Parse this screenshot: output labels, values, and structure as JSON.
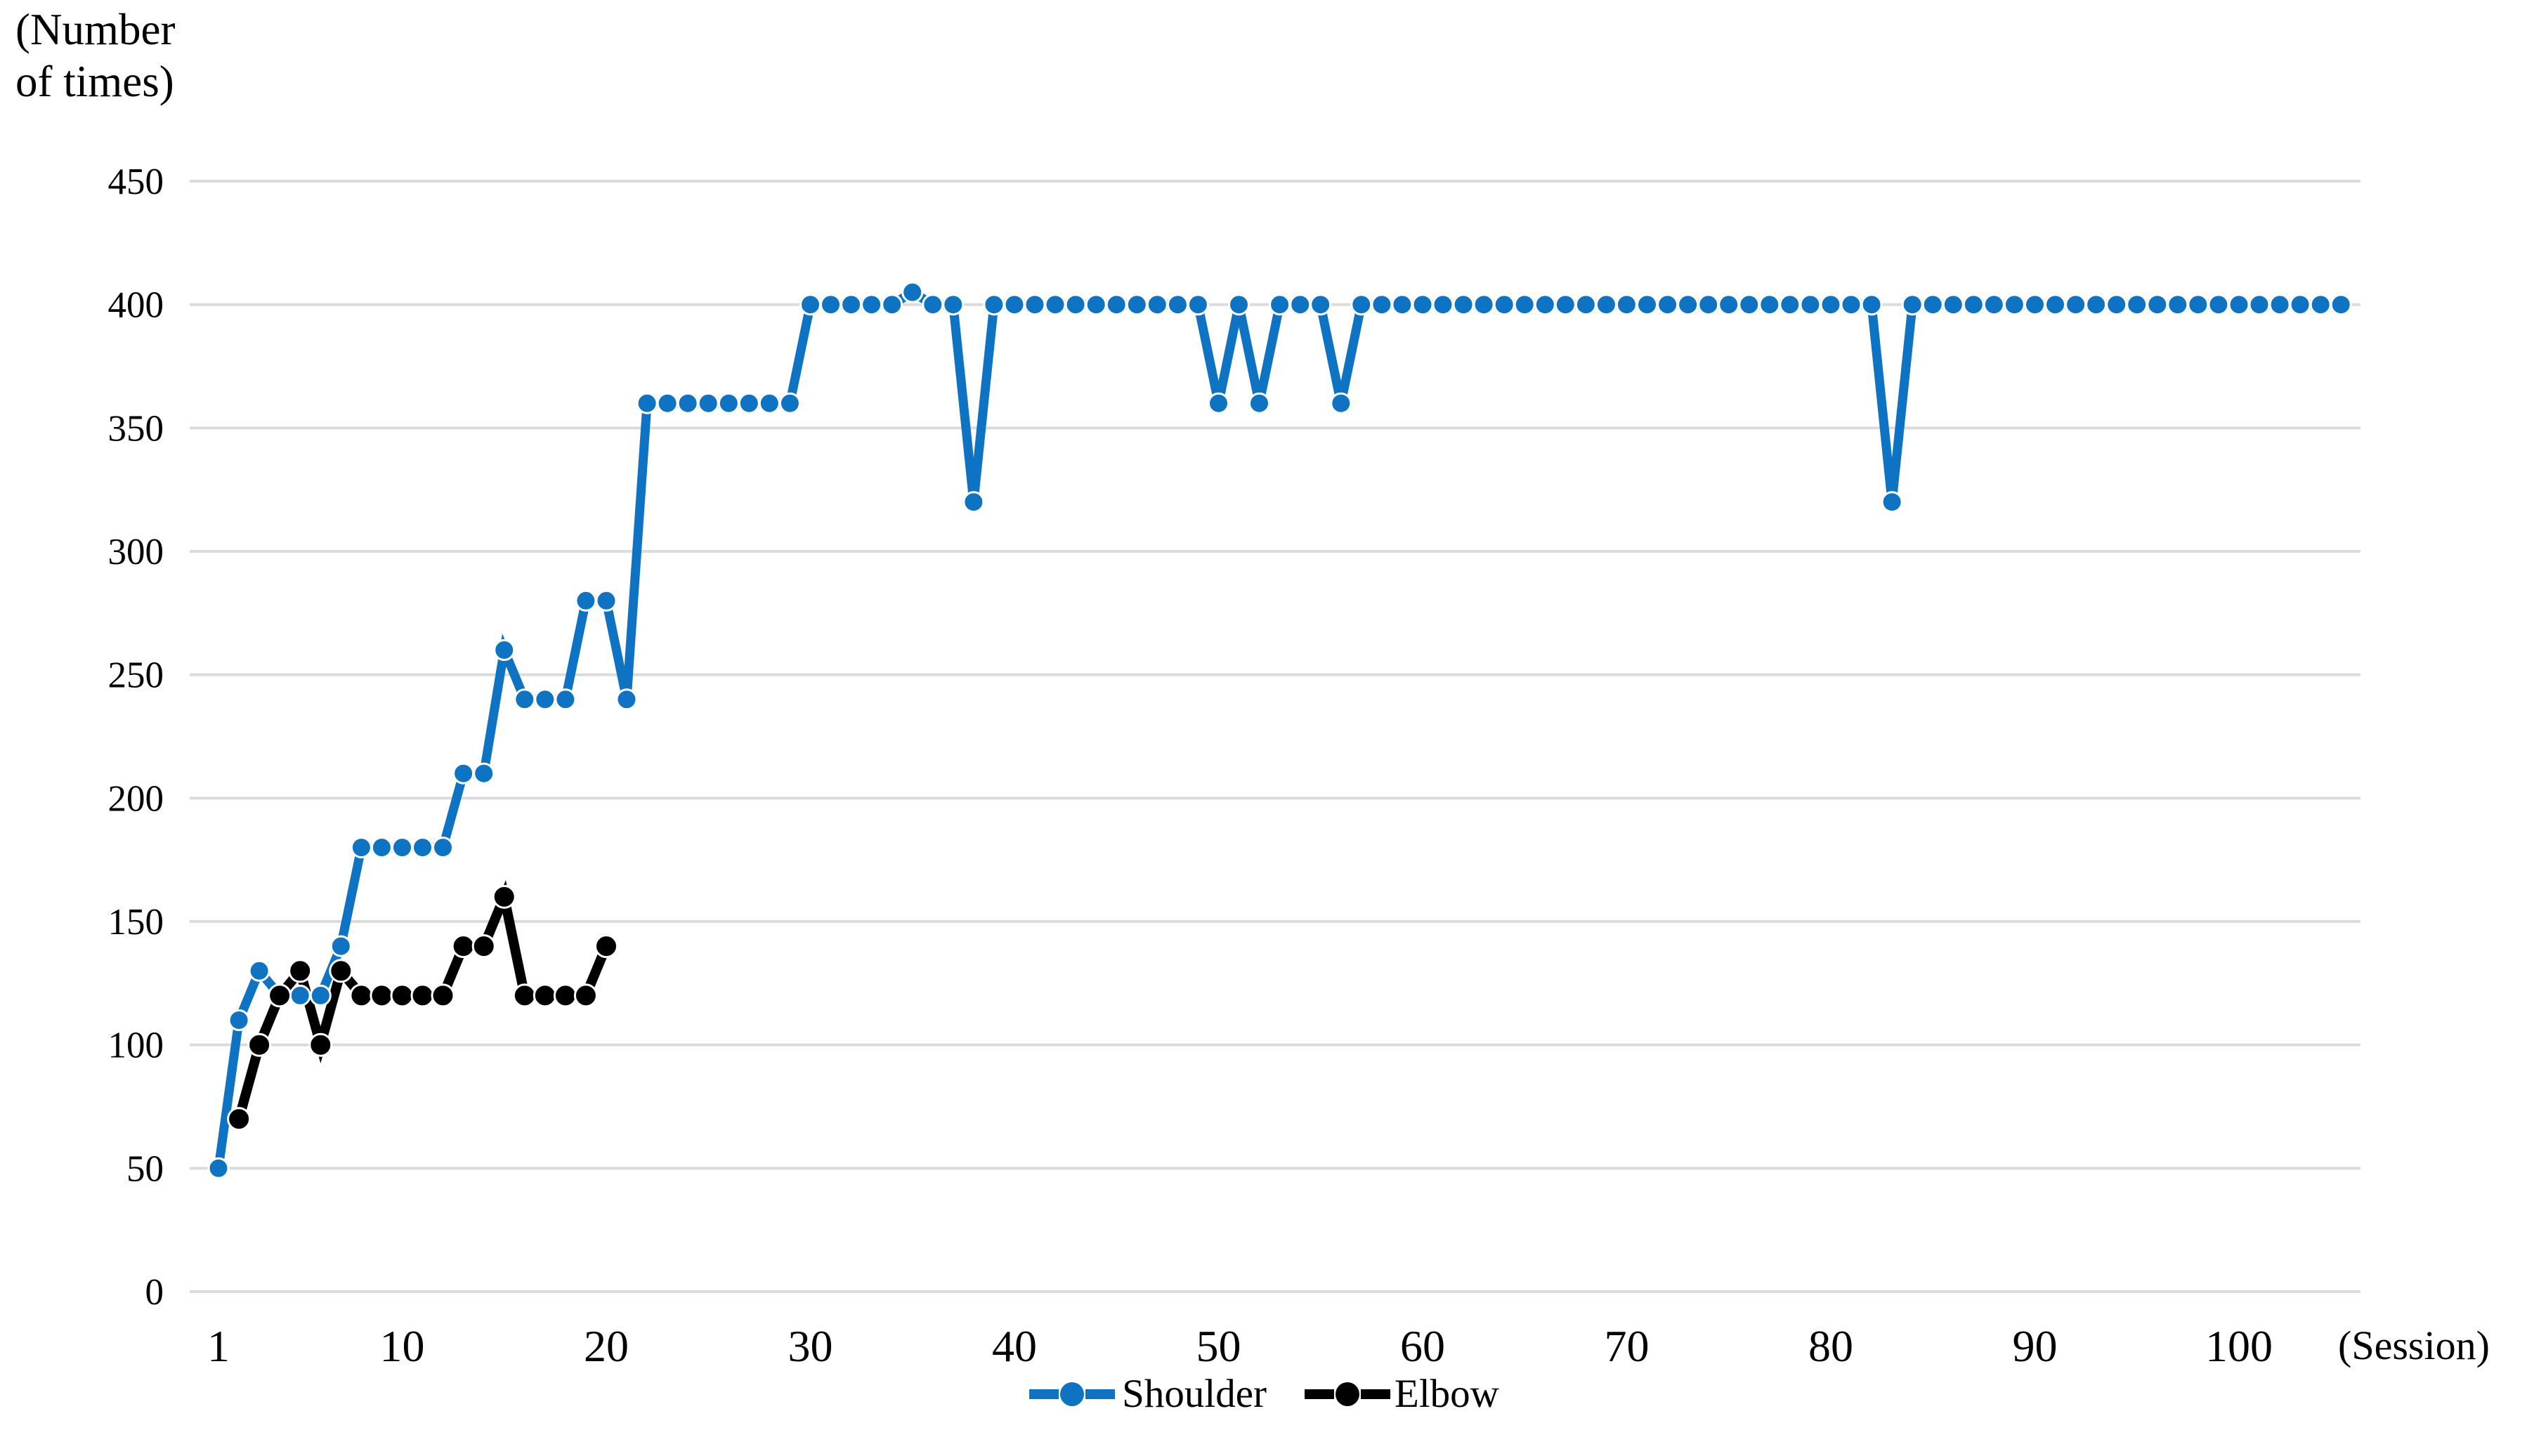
{
  "page": {
    "background": "#ffffff",
    "text_color": "#000000"
  },
  "chart_data": {
    "type": "line",
    "title": "",
    "y_axis_title_lines": [
      "(Number",
      "of times)"
    ],
    "x_axis_unit": "(Session)",
    "xlabel": "(Session)",
    "ylabel": "(Number of times)",
    "ylim": [
      0,
      450
    ],
    "xlim": [
      1,
      105
    ],
    "y_ticks": [
      0,
      50,
      100,
      150,
      200,
      250,
      300,
      350,
      400,
      450
    ],
    "x_ticks": [
      1,
      10,
      20,
      30,
      40,
      50,
      60,
      70,
      80,
      90,
      100
    ],
    "grid": "horizontal",
    "gridline_color": "#dbdbdb",
    "legend_position": "bottom-center",
    "series": [
      {
        "name": "Shoulder",
        "color": "#0d73c2",
        "x": [
          1,
          2,
          3,
          4,
          5,
          6,
          7,
          8,
          9,
          10,
          11,
          12,
          13,
          14,
          15,
          16,
          17,
          18,
          19,
          20,
          21,
          22,
          23,
          24,
          25,
          26,
          27,
          28,
          29,
          30,
          31,
          32,
          33,
          34,
          35,
          36,
          37,
          38,
          39,
          40,
          41,
          42,
          43,
          44,
          45,
          46,
          47,
          48,
          49,
          50,
          51,
          52,
          53,
          54,
          55,
          56,
          57,
          58,
          59,
          60,
          61,
          62,
          63,
          64,
          65,
          66,
          67,
          68,
          69,
          70,
          71,
          72,
          73,
          74,
          75,
          76,
          77,
          78,
          79,
          80,
          81,
          82,
          83,
          84,
          85,
          86,
          87,
          88,
          89,
          90,
          91,
          92,
          93,
          94,
          95,
          96,
          97,
          98,
          99,
          100,
          101,
          102,
          103,
          104,
          105
        ],
        "values": [
          50,
          110,
          130,
          120,
          120,
          120,
          140,
          180,
          180,
          180,
          180,
          180,
          210,
          210,
          260,
          240,
          240,
          240,
          280,
          280,
          240,
          360,
          360,
          360,
          360,
          360,
          360,
          360,
          360,
          400,
          400,
          400,
          400,
          400,
          405,
          400,
          400,
          320,
          400,
          400,
          400,
          400,
          400,
          400,
          400,
          400,
          400,
          400,
          400,
          360,
          400,
          360,
          400,
          400,
          400,
          360,
          400,
          400,
          400,
          400,
          400,
          400,
          400,
          400,
          400,
          400,
          400,
          400,
          400,
          400,
          400,
          400,
          400,
          400,
          400,
          400,
          400,
          400,
          400,
          400,
          400,
          400,
          320,
          400,
          400,
          400,
          400,
          400,
          400,
          400,
          400,
          400,
          400,
          400,
          400,
          400,
          400,
          400,
          400,
          400,
          400,
          400,
          400,
          400,
          400
        ]
      },
      {
        "name": "Elbow",
        "color": "#000000",
        "x": [
          2,
          3,
          4,
          5,
          6,
          7,
          8,
          9,
          10,
          11,
          12,
          13,
          14,
          15,
          16,
          17,
          18,
          19,
          20
        ],
        "values": [
          70,
          100,
          120,
          130,
          100,
          130,
          120,
          120,
          120,
          120,
          120,
          140,
          140,
          160,
          120,
          120,
          120,
          120,
          140
        ]
      }
    ]
  },
  "legend": {
    "shoulder_label": "Shoulder",
    "elbow_label": "Elbow"
  }
}
